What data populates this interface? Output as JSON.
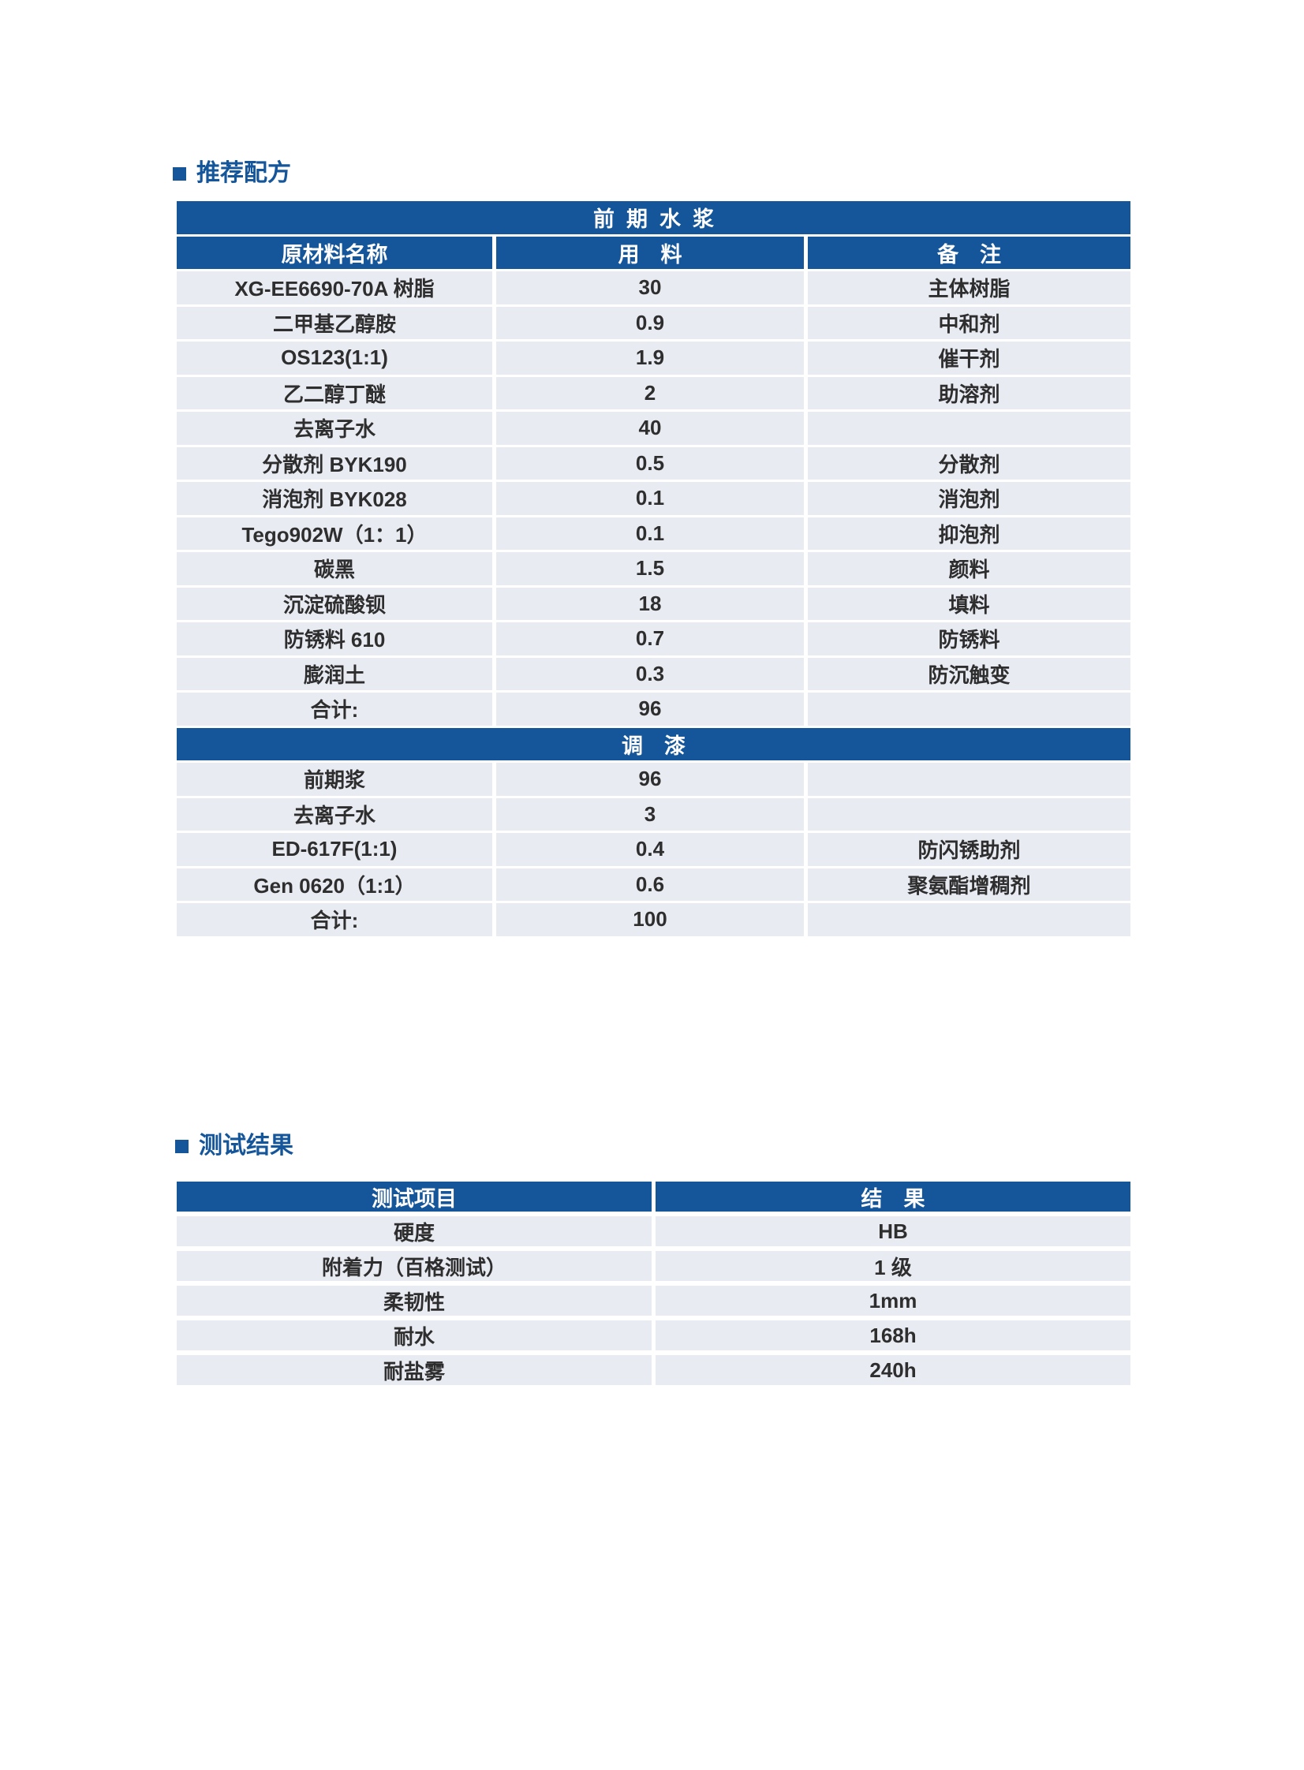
{
  "colors": {
    "accent": "#15569b",
    "row_bg": "#e9ebf3",
    "cell_text": "#2e2e2e",
    "page_bg": "#ffffff"
  },
  "section_formula": {
    "title": "推荐配方",
    "table": {
      "rows": [
        {
          "type": "banner",
          "label": "前  期  水  浆"
        },
        {
          "type": "header",
          "cells": [
            "原材料名称",
            "用　料",
            "备　注"
          ]
        },
        {
          "type": "data",
          "cells": [
            "XG-EE6690-70A 树脂",
            "30",
            "主体树脂"
          ]
        },
        {
          "type": "data",
          "cells": [
            "二甲基乙醇胺",
            "0.9",
            "中和剂"
          ]
        },
        {
          "type": "data",
          "cells": [
            "OS123(1:1)",
            "1.9",
            "催干剂"
          ]
        },
        {
          "type": "data",
          "cells": [
            "乙二醇丁醚",
            "2",
            "助溶剂"
          ]
        },
        {
          "type": "data",
          "cells": [
            "去离子水",
            "40",
            ""
          ]
        },
        {
          "type": "data",
          "cells": [
            "分散剂 BYK190",
            "0.5",
            "分散剂"
          ]
        },
        {
          "type": "data",
          "cells": [
            "消泡剂 BYK028",
            "0.1",
            "消泡剂"
          ]
        },
        {
          "type": "data",
          "cells": [
            "Tego902W（1：1）",
            "0.1",
            "抑泡剂"
          ]
        },
        {
          "type": "data",
          "cells": [
            "碳黑",
            "1.5",
            "颜料"
          ]
        },
        {
          "type": "data",
          "cells": [
            "沉淀硫酸钡",
            "18",
            "填料"
          ]
        },
        {
          "type": "data",
          "cells": [
            "防锈料 610",
            "0.7",
            "防锈料"
          ]
        },
        {
          "type": "data",
          "cells": [
            "膨润土",
            "0.3",
            "防沉触变"
          ]
        },
        {
          "type": "data",
          "cells": [
            "合计:",
            "96",
            ""
          ]
        },
        {
          "type": "banner",
          "label": "调　漆"
        },
        {
          "type": "data",
          "cells": [
            "前期浆",
            "96",
            ""
          ]
        },
        {
          "type": "data",
          "cells": [
            "去离子水",
            "3",
            ""
          ]
        },
        {
          "type": "data",
          "cells": [
            "ED-617F(1:1)",
            "0.4",
            "防闪锈助剂"
          ]
        },
        {
          "type": "data",
          "cells": [
            "Gen 0620（1:1）",
            "0.6",
            "聚氨酯增稠剂"
          ]
        },
        {
          "type": "data",
          "cells": [
            "合计:",
            "100",
            ""
          ]
        }
      ]
    }
  },
  "section_test": {
    "title": "测试结果",
    "table": {
      "rows": [
        {
          "type": "header",
          "cells": [
            "测试项目",
            "结　果"
          ]
        },
        {
          "type": "data",
          "cells": [
            "硬度",
            "HB"
          ]
        },
        {
          "type": "data",
          "cells": [
            "附着力（百格测试）",
            "1 级"
          ]
        },
        {
          "type": "data",
          "cells": [
            "柔韧性",
            "1mm"
          ]
        },
        {
          "type": "data",
          "cells": [
            "耐水",
            "168h"
          ]
        },
        {
          "type": "data",
          "cells": [
            "耐盐雾",
            "240h"
          ]
        }
      ]
    }
  }
}
